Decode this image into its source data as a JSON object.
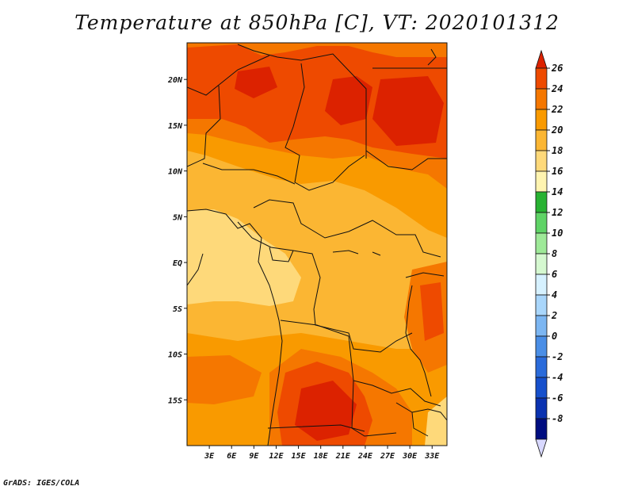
{
  "title": "Temperature at 850hPa [C], VT: 2020101312",
  "footer": "GrADS: IGES/COLA",
  "map": {
    "lat_labels": [
      "20N",
      "15N",
      "10N",
      "5N",
      "EQ",
      "5S",
      "10S",
      "15S"
    ],
    "lon_labels": [
      "3E",
      "6E",
      "9E",
      "12E",
      "15E",
      "18E",
      "21E",
      "24E",
      "27E",
      "30E",
      "33E"
    ],
    "extent": {
      "lon_min": 0,
      "lon_max": 35,
      "lat_min": -20,
      "lat_max": 24
    }
  },
  "colorbar": {
    "levels": [
      "26",
      "24",
      "22",
      "20",
      "18",
      "16",
      "14",
      "12",
      "10",
      "8",
      "6",
      "4",
      "2",
      "0",
      "-2",
      "-4",
      "-6",
      "-8"
    ],
    "colors": [
      "#dc2200",
      "#ee4a00",
      "#f57700",
      "#f99a00",
      "#fbb633",
      "#fed97a",
      "#fff4b0",
      "#28b232",
      "#5fd366",
      "#9ee998",
      "#d5f8d0",
      "#d6f1ff",
      "#a9d6fb",
      "#7cb6f2",
      "#4a8ee6",
      "#2a6bda",
      "#1650cc",
      "#0a32b0",
      "#000d80",
      "#d8d8ff"
    ]
  }
}
